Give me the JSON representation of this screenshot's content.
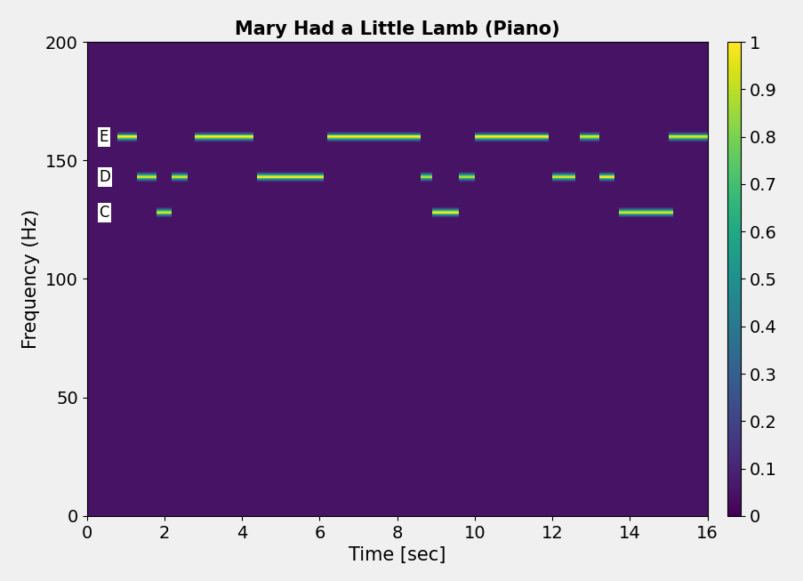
{
  "chart_data": {
    "type": "heatmap",
    "title": "Mary Had a Little Lamb (Piano)",
    "x_label": "Time [sec]",
    "y_label": "Frequency (Hz)",
    "xlim": [
      0,
      16
    ],
    "xticks": [
      0,
      2,
      4,
      6,
      8,
      10,
      12,
      14,
      16
    ],
    "ylim": [
      0,
      200
    ],
    "yticks": [
      0,
      50,
      100,
      150,
      200
    ],
    "colorbar_range": [
      0,
      1
    ],
    "colorbar_ticks": [
      0,
      0.1,
      0.2,
      0.3,
      0.4,
      0.5,
      0.6,
      0.7,
      0.8,
      0.9,
      1
    ],
    "background": 0.05,
    "notes": [
      {
        "start": 0.8,
        "end": 1.3,
        "frequency": 160,
        "level": 1
      },
      {
        "start": 1.3,
        "end": 1.8,
        "frequency": 143,
        "level": 0.95
      },
      {
        "start": 1.8,
        "end": 2.2,
        "frequency": 128,
        "level": 0.95
      },
      {
        "start": 2.2,
        "end": 2.6,
        "frequency": 143,
        "level": 0.95
      },
      {
        "start": 2.8,
        "end": 4.3,
        "frequency": 160,
        "level": 1
      },
      {
        "start": 4.4,
        "end": 6.1,
        "frequency": 143,
        "level": 1
      },
      {
        "start": 6.2,
        "end": 8.6,
        "frequency": 160,
        "level": 1
      },
      {
        "start": 8.6,
        "end": 8.9,
        "frequency": 143,
        "level": 0.9
      },
      {
        "start": 8.9,
        "end": 9.6,
        "frequency": 128,
        "level": 1
      },
      {
        "start": 9.6,
        "end": 10.0,
        "frequency": 143,
        "level": 0.9
      },
      {
        "start": 10.0,
        "end": 11.9,
        "frequency": 160,
        "level": 1
      },
      {
        "start": 12.0,
        "end": 12.6,
        "frequency": 143,
        "level": 0.95
      },
      {
        "start": 12.7,
        "end": 13.2,
        "frequency": 160,
        "level": 0.95
      },
      {
        "start": 13.2,
        "end": 13.6,
        "frequency": 143,
        "level": 1
      },
      {
        "start": 13.7,
        "end": 15.1,
        "frequency": 128,
        "level": 0.95
      },
      {
        "start": 15.0,
        "end": 16.0,
        "frequency": 160,
        "level": 0.95
      }
    ],
    "annotations": [
      {
        "label": "E",
        "value": 160
      },
      {
        "label": "D",
        "value": 143
      },
      {
        "label": "C",
        "value": 128
      }
    ]
  }
}
